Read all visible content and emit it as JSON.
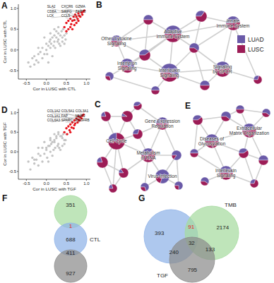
{
  "chart_data": [
    {
      "type": "scatter",
      "title": "A",
      "xlabel": "Cor in LUSC with CTL",
      "ylabel": "Cor in LUSC with CTL",
      "xlim": [
        -0.7,
        1.1
      ],
      "ylim": [
        -0.7,
        1.1
      ],
      "xticks": [
        -0.5,
        {
          "value": 0,
          "label": "0.0"
        },
        0.5,
        {
          "value": 1,
          "label": "1.0"
        }
      ],
      "yticks": [
        -0.5,
        {
          "value": 0,
          "label": "0.0"
        },
        0.5,
        {
          "value": 1,
          "label": "1.0"
        }
      ],
      "grid": false,
      "marker": "circle",
      "series": [
        {
          "color": "#c4c4c4",
          "x": [
            -0.45,
            -0.4,
            -0.35,
            -0.3,
            -0.3,
            -0.25,
            -0.2,
            -0.2,
            -0.15,
            -0.1,
            -0.1,
            -0.05,
            0,
            0,
            0.02,
            0.05,
            0.08,
            0.1,
            0.1,
            0.12,
            0.15,
            0.18,
            0.2,
            0.2,
            0.22,
            0.25,
            0.28,
            0.3,
            0.3,
            0.32,
            0.35,
            0.38,
            0.4,
            0.4,
            0.42,
            0.45,
            0.48,
            0.5,
            0.3,
            0.1,
            -0.05,
            0.15,
            0.25,
            0.35,
            0.05,
            -0.2,
            0.45,
            0.2
          ],
          "values": [
            -0.3,
            -0.4,
            -0.2,
            -0.35,
            -0.15,
            -0.25,
            -0.1,
            -0.3,
            -0.05,
            -0.2,
            0.05,
            -0.1,
            0,
            0.15,
            -0.1,
            0.1,
            0.2,
            0.05,
            0.25,
            0.15,
            0.3,
            0.1,
            0.2,
            0.35,
            0.05,
            0.3,
            0.2,
            0.4,
            0.25,
            0.15,
            0.35,
            0.45,
            0.3,
            0.2,
            0.5,
            0.35,
            0.25,
            0.4,
            0.55,
            0.4,
            0.3,
            -0.15,
            0.45,
            0.1,
            -0.3,
            0.05,
            0.15,
            0.5
          ]
        },
        {
          "color": "#e8141c",
          "x": [
            0.45,
            0.5,
            0.5,
            0.55,
            0.55,
            0.6,
            0.6,
            0.62,
            0.65,
            0.65,
            0.68,
            0.7,
            0.7,
            0.72,
            0.75,
            0.75,
            0.78,
            0.8,
            0.8,
            0.82,
            0.85,
            0.88,
            0.9,
            0.92,
            0.95
          ],
          "values": [
            0.55,
            0.45,
            0.65,
            0.5,
            0.7,
            0.55,
            0.75,
            0.62,
            0.5,
            0.7,
            0.8,
            0.6,
            0.72,
            0.85,
            0.65,
            0.8,
            0.75,
            0.7,
            0.88,
            0.82,
            0.8,
            0.9,
            0.85,
            0.92,
            0.95
          ]
        }
      ],
      "annotations": [
        {
          "text": "SLA2",
          "x": 0.82,
          "y": 0.82
        },
        {
          "text": "CXCR6",
          "x": 0.88,
          "y": 0.9
        },
        {
          "text": "GZMA",
          "x": 0.92,
          "y": 0.92
        },
        {
          "text": "CD8A",
          "x": 0.95,
          "y": 0.95
        },
        {
          "text": "SIRPG",
          "x": 0.78,
          "y": 0.75
        },
        {
          "text": "ZAP70",
          "x": 0.85,
          "y": 0.8
        },
        {
          "text": "LCK",
          "x": 0.9,
          "y": 0.85
        },
        {
          "text": "CCL5",
          "x": 0.8,
          "y": 0.7
        }
      ]
    },
    {
      "type": "scatter",
      "title": "D",
      "xlabel": "Cor in LUSC with TGF",
      "ylabel": "Cor in LUSC with TGF",
      "xlim": [
        -0.7,
        1.1
      ],
      "ylim": [
        -0.7,
        1.1
      ],
      "xticks": [
        -0.5,
        {
          "value": 0,
          "label": "0.0"
        },
        0.5,
        {
          "value": 1,
          "label": "1.0"
        }
      ],
      "yticks": [
        -0.5,
        {
          "value": 0,
          "label": "0.0"
        },
        0.5,
        {
          "value": 1,
          "label": "1.0"
        }
      ],
      "grid": false,
      "marker": "circle",
      "series": [
        {
          "color": "#c4c4c4",
          "x": [
            -0.45,
            -0.4,
            -0.35,
            -0.3,
            -0.3,
            -0.25,
            -0.2,
            -0.2,
            -0.15,
            -0.1,
            -0.1,
            -0.05,
            0,
            0,
            0.02,
            0.05,
            0.08,
            0.1,
            0.1,
            0.12,
            0.15,
            0.18,
            0.2,
            0.2,
            0.22,
            0.25,
            0.28,
            0.3,
            0.3,
            0.32,
            0.35,
            0.38,
            0.4,
            0.4,
            0.42,
            0.45,
            0.48,
            0.5,
            0.3,
            0.1,
            -0.05,
            0.15,
            0.25,
            0.35,
            0.05,
            -0.2,
            0.45,
            0.2
          ],
          "values": [
            -0.25,
            -0.45,
            -0.15,
            -0.3,
            -0.2,
            -0.2,
            -0.05,
            -0.35,
            -0.1,
            -0.25,
            0.1,
            -0.05,
            0.05,
            0.1,
            -0.15,
            0.15,
            0.15,
            0,
            0.3,
            0.2,
            0.25,
            0.05,
            0.25,
            0.3,
            0.1,
            0.35,
            0.15,
            0.45,
            0.2,
            0.1,
            0.4,
            0.4,
            0.35,
            0.15,
            0.45,
            0.3,
            0.3,
            0.45,
            0.5,
            0.35,
            0.25,
            -0.1,
            0.4,
            0.05,
            -0.25,
            0.1,
            0.2,
            0.45
          ]
        },
        {
          "color": "#e8141c",
          "x": [
            0.45,
            0.5,
            0.52,
            0.55,
            0.58,
            0.6,
            0.6,
            0.63,
            0.65,
            0.68,
            0.7,
            0.7,
            0.72,
            0.75,
            0.78,
            0.8,
            0.8,
            0.83,
            0.85,
            0.88,
            0.9,
            0.93
          ],
          "values": [
            0.5,
            0.6,
            0.45,
            0.65,
            0.55,
            0.7,
            0.5,
            0.62,
            0.75,
            0.6,
            0.8,
            0.68,
            0.72,
            0.85,
            0.75,
            0.82,
            0.9,
            0.8,
            0.88,
            0.85,
            0.92,
            0.95
          ]
        }
      ],
      "annotations": [
        {
          "text": "COL1A2",
          "x": 0.9,
          "y": 0.92
        },
        {
          "text": "COL5A1",
          "x": 0.88,
          "y": 0.85
        },
        {
          "text": "COL3A1",
          "x": 0.93,
          "y": 0.95
        },
        {
          "text": "COL1A1",
          "x": 0.85,
          "y": 0.88
        },
        {
          "text": "FAP",
          "x": 0.8,
          "y": 0.82
        },
        {
          "text": "MMP2",
          "x": 0.83,
          "y": 0.8
        },
        {
          "text": "COL6A3",
          "x": 0.75,
          "y": 0.85
        },
        {
          "text": "SPARC",
          "x": 0.78,
          "y": 0.75
        },
        {
          "text": "PDGFRB",
          "x": 0.72,
          "y": 0.8
        }
      ]
    }
  ],
  "network_groups": [
    {
      "name": "LUAD",
      "color": "#6a5aa8"
    },
    {
      "name": "LUSC",
      "color": "#9c1c56"
    }
  ],
  "networks": [
    {
      "letter": "B",
      "legend": "right",
      "nodes": [
        {
          "label": "Adaptive Immune System",
          "luad": 0.5,
          "size": 12
        },
        {
          "label": "Innate Immune System",
          "luad": 0.45,
          "size": 10
        },
        {
          "label": "Other Cytokine Signaling",
          "luad": 0.5,
          "size": 8
        },
        {
          "label": "Interferon Signaling",
          "luad": 0.6,
          "size": 10
        },
        {
          "label": "Interleukin Signaling",
          "luad": 0.55,
          "size": 13
        },
        {
          "label": "Signaling by GPCR",
          "luad": 0.45,
          "size": 11
        },
        {
          "luad": 0.5,
          "size": 7
        },
        {
          "luad": 0.35,
          "size": 8
        },
        {
          "luad": 0.6,
          "size": 7
        },
        {
          "luad": 0.4,
          "size": 8
        },
        {
          "luad": 0.5,
          "size": 7
        },
        {
          "luad": 0.3,
          "size": 6
        },
        {
          "luad": 0.5,
          "size": 6
        },
        {
          "luad": 0.7,
          "size": 6
        }
      ],
      "edges": [
        [
          0,
          1
        ],
        [
          0,
          6
        ],
        [
          0,
          7
        ],
        [
          0,
          8
        ],
        [
          0,
          4
        ],
        [
          0,
          9
        ],
        [
          1,
          7
        ],
        [
          1,
          5
        ],
        [
          1,
          8
        ],
        [
          2,
          6
        ],
        [
          2,
          9
        ],
        [
          2,
          3
        ],
        [
          3,
          9
        ],
        [
          3,
          4
        ],
        [
          3,
          13
        ],
        [
          4,
          9
        ],
        [
          4,
          8
        ],
        [
          4,
          10
        ],
        [
          4,
          12
        ],
        [
          5,
          8
        ],
        [
          5,
          10
        ],
        [
          5,
          11
        ],
        [
          6,
          9
        ],
        [
          7,
          8
        ],
        [
          8,
          10
        ],
        [
          12,
          13
        ],
        [
          0,
          2
        ],
        [
          0,
          3
        ],
        [
          4,
          5
        ],
        [
          1,
          11
        ]
      ]
    },
    {
      "letter": "C",
      "nodes": [
        {
          "label": "Cell Cycle",
          "luad": 0.25,
          "size": 12
        },
        {
          "label": "Metabolism of RNA",
          "luad": 0.35,
          "size": 10
        },
        {
          "label": "Gene Expression Regulation",
          "luad": 0.5,
          "size": 9
        },
        {
          "label": "Virus Infection",
          "luad": 0.8,
          "size": 10
        },
        {
          "luad": 0.2,
          "size": 7
        },
        {
          "luad": 0.1,
          "size": 8
        },
        {
          "luad": 0.2,
          "size": 8
        },
        {
          "luad": 0.15,
          "size": 7
        },
        {
          "luad": 0.3,
          "size": 7
        },
        {
          "luad": 0.7,
          "size": 6
        },
        {
          "luad": 0.85,
          "size": 7
        },
        {
          "luad": 0.75,
          "size": 6
        },
        {
          "luad": 0.2,
          "size": 6
        },
        {
          "luad": 0.4,
          "size": 6
        }
      ],
      "edges": [
        [
          0,
          4
        ],
        [
          0,
          5
        ],
        [
          0,
          6
        ],
        [
          0,
          7
        ],
        [
          0,
          8
        ],
        [
          0,
          1
        ],
        [
          4,
          5
        ],
        [
          5,
          8
        ],
        [
          6,
          7
        ],
        [
          6,
          12
        ],
        [
          7,
          12
        ],
        [
          8,
          1
        ],
        [
          8,
          2
        ],
        [
          1,
          2
        ],
        [
          1,
          3
        ],
        [
          1,
          9
        ],
        [
          3,
          9
        ],
        [
          3,
          10
        ],
        [
          3,
          11
        ],
        [
          10,
          11
        ],
        [
          2,
          13
        ],
        [
          5,
          13
        ],
        [
          0,
          12
        ],
        [
          1,
          7
        ],
        [
          1,
          10
        ],
        [
          2,
          10
        ]
      ]
    },
    {
      "letter": "E",
      "nodes": [
        {
          "label": "Diseases of Glycosylation",
          "luad": 0.5,
          "size": 10
        },
        {
          "label": "Extracellular Matrix Organization",
          "luad": 0.45,
          "size": 10
        },
        {
          "label": "Interleukin Signaling",
          "luad": 0.5,
          "size": 10
        },
        {
          "luad": 0.4,
          "size": 7
        },
        {
          "luad": 0.6,
          "size": 7
        },
        {
          "luad": 0.5,
          "size": 6
        },
        {
          "luad": 0.4,
          "size": 7
        },
        {
          "luad": 0.6,
          "size": 6
        },
        {
          "luad": 0.5,
          "size": 7
        },
        {
          "luad": 0.3,
          "size": 6
        },
        {
          "luad": 0.5,
          "size": 6
        },
        {
          "luad": 0.6,
          "size": 6
        }
      ],
      "edges": [
        [
          0,
          3
        ],
        [
          0,
          4
        ],
        [
          0,
          5
        ],
        [
          0,
          2
        ],
        [
          0,
          6
        ],
        [
          0,
          1
        ],
        [
          1,
          4
        ],
        [
          1,
          6
        ],
        [
          1,
          8
        ],
        [
          1,
          10
        ],
        [
          1,
          11
        ],
        [
          2,
          5
        ],
        [
          2,
          7
        ],
        [
          2,
          6
        ],
        [
          2,
          9
        ],
        [
          6,
          8
        ],
        [
          8,
          9
        ],
        [
          3,
          4
        ],
        [
          4,
          10
        ],
        [
          10,
          11
        ],
        [
          3,
          5
        ],
        [
          6,
          9
        ]
      ]
    }
  ],
  "venns": [
    {
      "letter": "F",
      "sets": [
        {
          "color": "#a6dba0"
        },
        {
          "label": "CTL",
          "color": "#8fb3e8"
        },
        {
          "color": "#8c8c8c"
        }
      ],
      "regions": [
        {
          "sets": [
            0
          ],
          "value": 351
        },
        {
          "sets": [
            0,
            1
          ],
          "value": 1,
          "color": "#e8141c"
        },
        {
          "sets": [
            1
          ],
          "value": 688
        },
        {
          "sets": [
            1,
            2
          ],
          "value": 411
        },
        {
          "sets": [
            2
          ],
          "value": 927
        }
      ]
    },
    {
      "letter": "G",
      "sets": [
        {
          "color": "#8fb3e8"
        },
        {
          "label": "TMB",
          "color": "#a6dba0"
        },
        {
          "label": "TGF",
          "color": "#8c8c8c"
        }
      ],
      "regions": [
        {
          "sets": [
            0
          ],
          "value": 393
        },
        {
          "sets": [
            0,
            1
          ],
          "value": 91,
          "color": "#e8141c"
        },
        {
          "sets": [
            1
          ],
          "value": 2174
        },
        {
          "sets": [
            0,
            1,
            2
          ],
          "value": 32
        },
        {
          "sets": [
            0,
            2
          ],
          "value": 240
        },
        {
          "sets": [
            1,
            2
          ],
          "value": 133
        },
        {
          "sets": [
            2
          ],
          "value": 795
        }
      ]
    }
  ]
}
